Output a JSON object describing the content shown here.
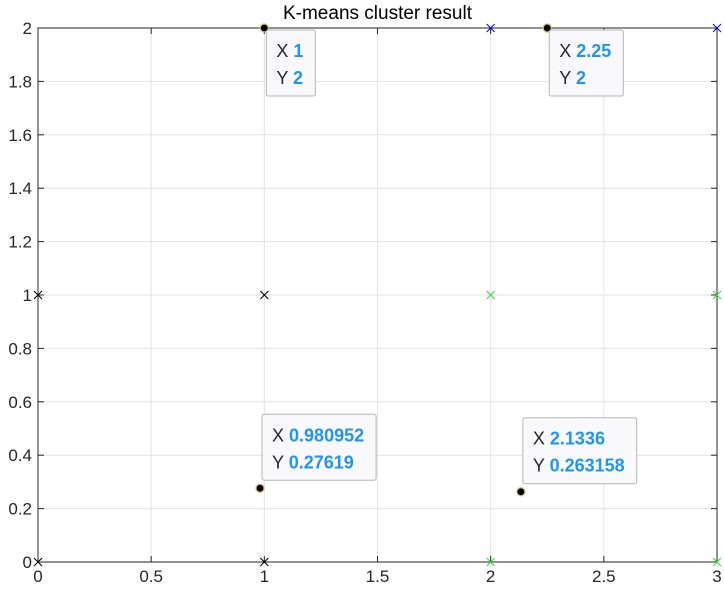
{
  "chart_data": {
    "type": "scatter",
    "title": "K-means cluster result",
    "xlabel": "",
    "ylabel": "",
    "xlim": [
      0,
      3
    ],
    "ylim": [
      0,
      2
    ],
    "xticks": [
      0,
      0.5,
      1,
      1.5,
      2,
      2.5,
      3
    ],
    "xtick_labels": [
      "0",
      "0.5",
      "1",
      "1.5",
      "2",
      "2.5",
      "3"
    ],
    "yticks": [
      0,
      0.2,
      0.4,
      0.6,
      0.8,
      1,
      1.2,
      1.4,
      1.6,
      1.8,
      2
    ],
    "ytick_labels": [
      "0",
      "0.2",
      "0.4",
      "0.6",
      "0.8",
      "1",
      "1.2",
      "1.4",
      "1.6",
      "1.8",
      "2"
    ],
    "grid": true,
    "series": [
      {
        "marker": "x",
        "color": "#000000",
        "points": [
          [
            0,
            0
          ],
          [
            1,
            0
          ],
          [
            0,
            1
          ],
          [
            1,
            1
          ]
        ]
      },
      {
        "marker": "x",
        "color": "#33dd33",
        "points": [
          [
            2,
            0
          ],
          [
            3,
            0
          ],
          [
            2,
            1
          ],
          [
            3,
            1
          ]
        ]
      },
      {
        "marker": "x",
        "color": "#0000ff",
        "points": [
          [
            2,
            2
          ],
          [
            3,
            2
          ]
        ]
      },
      {
        "marker": "dot",
        "color": "#000000",
        "points": [
          [
            1,
            2
          ],
          [
            2.25,
            2
          ],
          [
            0.980952,
            0.27619
          ],
          [
            2.1336,
            0.263158
          ]
        ]
      }
    ],
    "datatips": [
      {
        "x": 1,
        "y": 2,
        "x_label": "1",
        "y_label": "2"
      },
      {
        "x": 2.25,
        "y": 2,
        "x_label": "2.25",
        "y_label": "2"
      },
      {
        "x": 0.980952,
        "y": 0.27619,
        "x_label": "0.980952",
        "y_label": "0.27619"
      },
      {
        "x": 2.1336,
        "y": 0.263158,
        "x_label": "2.1336",
        "y_label": "0.263158"
      }
    ],
    "datatip_key_x": "X",
    "datatip_key_y": "Y"
  }
}
